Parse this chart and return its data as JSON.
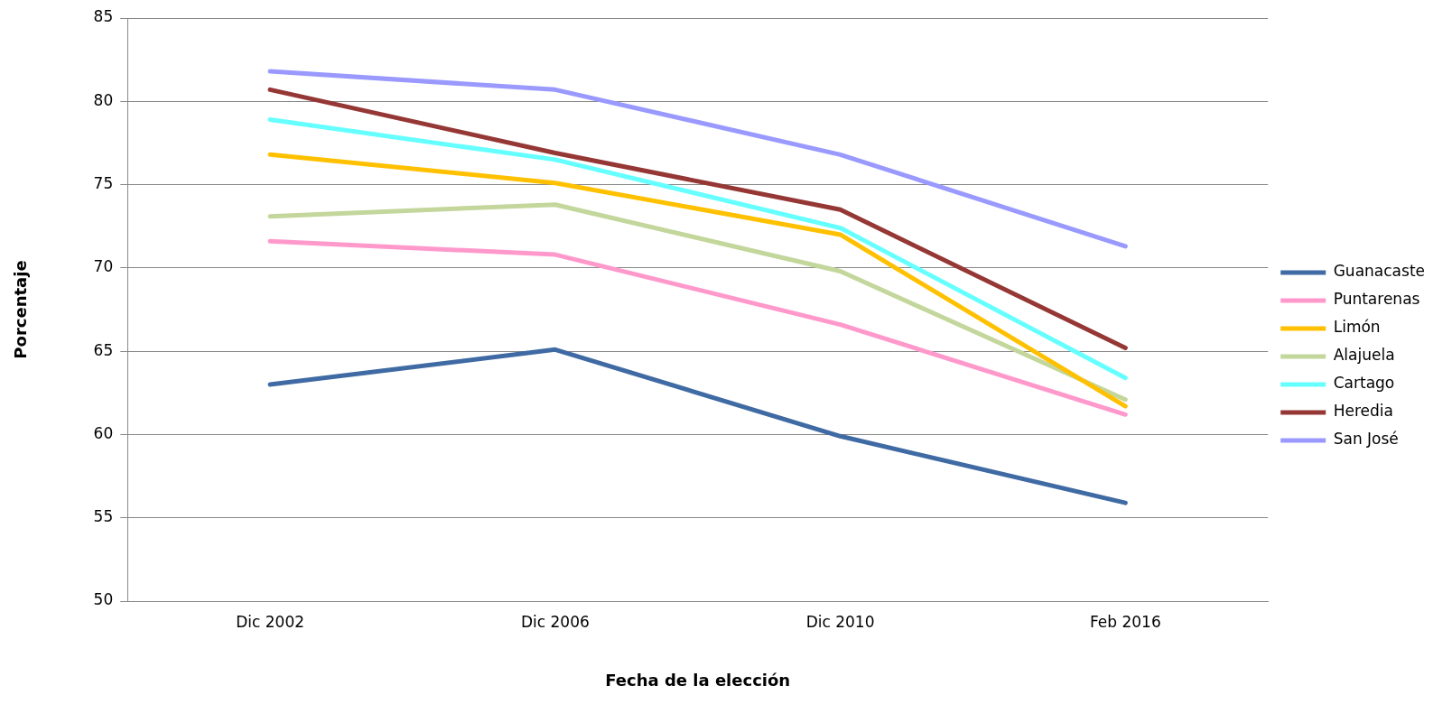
{
  "chart_data": {
    "type": "line",
    "xlabel": "Fecha de la elección",
    "ylabel": "Porcentaje",
    "categories": [
      "Dic 2002",
      "Dic 2006",
      "Dic 2010",
      "Feb 2016"
    ],
    "series": [
      {
        "name": "Guanacaste",
        "color": "#3f6aa3",
        "values": [
          63.0,
          65.1,
          59.9,
          55.9
        ]
      },
      {
        "name": "Puntarenas",
        "color": "#ff99cc",
        "values": [
          71.6,
          70.8,
          66.6,
          61.2
        ]
      },
      {
        "name": "Limón",
        "color": "#ffc000",
        "values": [
          76.8,
          75.1,
          72.0,
          61.7
        ]
      },
      {
        "name": "Alajuela",
        "color": "#c3d69b",
        "values": [
          73.1,
          73.8,
          69.8,
          62.1
        ]
      },
      {
        "name": "Cartago",
        "color": "#66ffff",
        "values": [
          78.9,
          76.5,
          72.4,
          63.4
        ]
      },
      {
        "name": "Heredia",
        "color": "#953735",
        "values": [
          80.7,
          76.9,
          73.5,
          65.2
        ]
      },
      {
        "name": "San José",
        "color": "#9999ff",
        "values": [
          81.8,
          80.7,
          76.8,
          71.3
        ]
      }
    ],
    "ylim": [
      50,
      85
    ],
    "yticks": [
      50,
      55,
      60,
      65,
      70,
      75,
      80,
      85
    ],
    "grid": "y",
    "legend": "right",
    "marker": "none",
    "line_style": "solid"
  }
}
